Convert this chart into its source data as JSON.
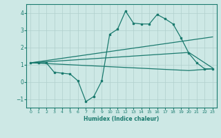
{
  "bg_color": "#cde8e5",
  "line_color": "#1a7a6e",
  "grid_color": "#b0cfcc",
  "xlabel": "Humidex (Indice chaleur)",
  "xlim": [
    -0.5,
    23.5
  ],
  "ylim": [
    -1.5,
    4.5
  ],
  "yticks": [
    -1,
    0,
    1,
    2,
    3,
    4
  ],
  "xticks": [
    0,
    1,
    2,
    3,
    4,
    5,
    6,
    7,
    8,
    9,
    10,
    11,
    12,
    13,
    14,
    15,
    16,
    17,
    18,
    19,
    20,
    21,
    22,
    23
  ],
  "series_wavy": {
    "x": [
      0,
      1,
      2,
      3,
      4,
      5,
      6,
      7,
      8,
      9,
      10,
      11,
      12,
      13,
      14,
      15,
      16,
      17,
      18,
      19,
      20,
      21,
      22,
      23
    ],
    "y": [
      1.1,
      1.1,
      1.1,
      0.55,
      0.5,
      0.45,
      0.05,
      -1.15,
      -0.85,
      0.05,
      2.75,
      3.05,
      4.1,
      3.4,
      3.35,
      3.35,
      3.9,
      3.65,
      3.35,
      2.55,
      1.65,
      1.1,
      0.75,
      0.75
    ]
  },
  "series_upper": {
    "x": [
      0,
      23
    ],
    "y": [
      1.1,
      2.6
    ]
  },
  "series_middle": {
    "x": [
      0,
      20,
      23
    ],
    "y": [
      1.1,
      1.7,
      0.8
    ]
  },
  "series_lower": {
    "x": [
      0,
      20,
      23
    ],
    "y": [
      1.1,
      0.65,
      0.75
    ]
  }
}
